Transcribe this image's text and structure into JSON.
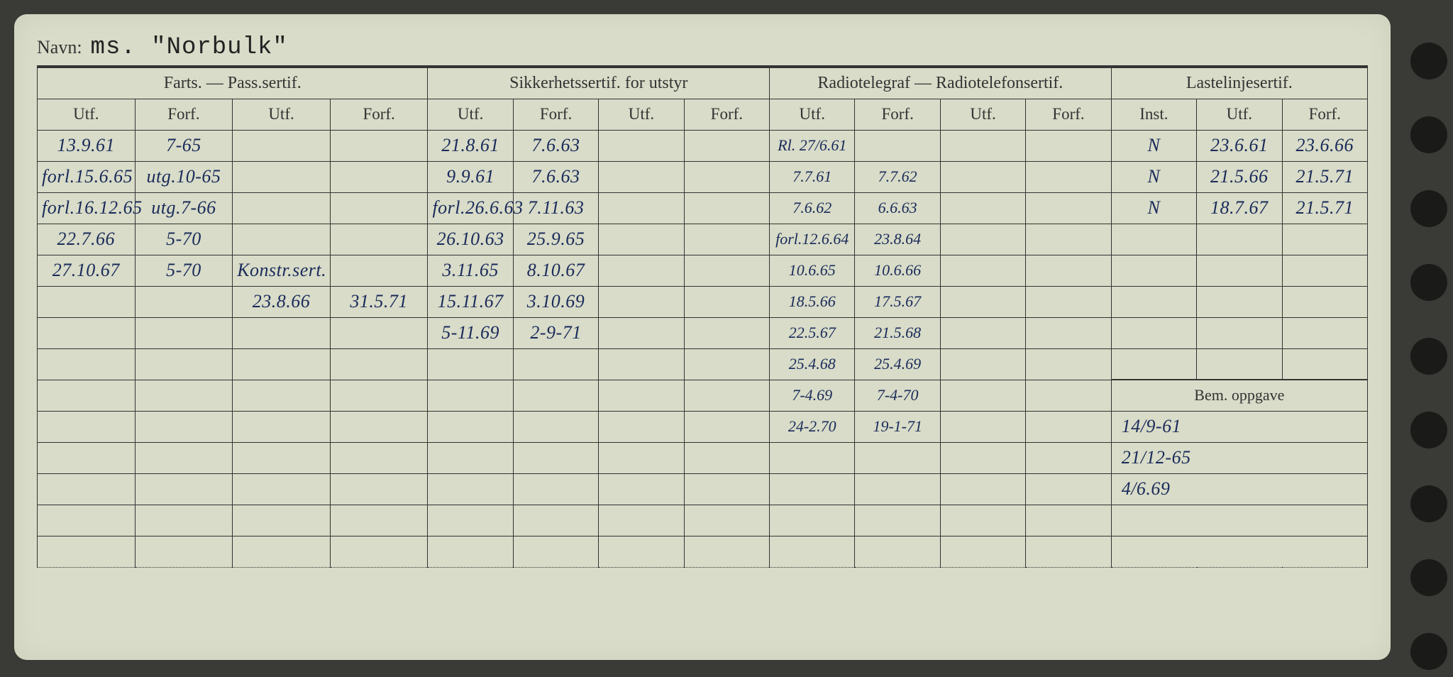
{
  "labels": {
    "navn": "Navn:",
    "farts": "Farts. — Pass.sertif.",
    "sikkerhet": "Sikkerhetssertif. for utstyr",
    "radio": "Radiotelegraf — Radiotelefonsertif.",
    "laste": "Lastelinjesertif.",
    "utf": "Utf.",
    "forf": "Forf.",
    "inst": "Inst.",
    "bem": "Bem. oppgave"
  },
  "title": "ms. \"Norbulk\"",
  "rows": [
    {
      "farts": [
        "13.9.61",
        "7-65",
        "",
        ""
      ],
      "sik": [
        "21.8.61",
        "7.6.63",
        "",
        ""
      ],
      "radio": [
        "Rl. 27/6.61",
        "",
        "",
        ""
      ],
      "laste": [
        "N",
        "23.6.61",
        "23.6.66"
      ]
    },
    {
      "farts": [
        "forl.15.6.65",
        "utg.10-65",
        "",
        ""
      ],
      "sik": [
        "9.9.61",
        "7.6.63",
        "",
        ""
      ],
      "radio": [
        "7.7.61",
        "7.7.62",
        "",
        ""
      ],
      "laste": [
        "N",
        "21.5.66",
        "21.5.71"
      ]
    },
    {
      "farts": [
        "forl.16.12.65",
        "utg.7-66",
        "",
        ""
      ],
      "sik": [
        "forl.26.6.63",
        "7.11.63",
        "",
        ""
      ],
      "radio": [
        "7.6.62",
        "6.6.63",
        "",
        ""
      ],
      "laste": [
        "N",
        "18.7.67",
        "21.5.71"
      ]
    },
    {
      "farts": [
        "22.7.66",
        "5-70",
        "",
        ""
      ],
      "sik": [
        "26.10.63",
        "25.9.65",
        "",
        ""
      ],
      "radio": [
        "forl.12.6.64",
        "23.8.64",
        "",
        ""
      ],
      "laste": [
        "",
        "",
        ""
      ]
    },
    {
      "farts": [
        "27.10.67",
        "5-70",
        "Konstr.sert.",
        ""
      ],
      "sik": [
        "3.11.65",
        "8.10.67",
        "",
        ""
      ],
      "radio": [
        "10.6.65",
        "10.6.66",
        "",
        ""
      ],
      "laste": [
        "",
        "",
        ""
      ]
    },
    {
      "farts": [
        "",
        "",
        "23.8.66",
        "31.5.71"
      ],
      "sik": [
        "15.11.67",
        "3.10.69",
        "",
        ""
      ],
      "radio": [
        "18.5.66",
        "17.5.67",
        "",
        ""
      ],
      "laste": [
        "",
        "",
        ""
      ]
    },
    {
      "farts": [
        "",
        "",
        "",
        ""
      ],
      "sik": [
        "5-11.69",
        "2-9-71",
        "",
        ""
      ],
      "radio": [
        "22.5.67",
        "21.5.68",
        "",
        ""
      ],
      "laste": [
        "",
        "",
        ""
      ]
    },
    {
      "farts": [
        "",
        "",
        "",
        ""
      ],
      "sik": [
        "",
        "",
        "",
        ""
      ],
      "radio": [
        "25.4.68",
        "25.4.69",
        "",
        ""
      ],
      "laste": [
        "",
        "",
        ""
      ]
    },
    {
      "farts": [
        "",
        "",
        "",
        ""
      ],
      "sik": [
        "",
        "",
        "",
        ""
      ],
      "radio": [
        "7-4.69",
        "7-4-70",
        "",
        ""
      ],
      "laste_bem_header": true
    },
    {
      "farts": [
        "",
        "",
        "",
        ""
      ],
      "sik": [
        "",
        "",
        "",
        ""
      ],
      "radio": [
        "24-2.70",
        "19-1-71",
        "",
        ""
      ],
      "bem": "14/9-61"
    },
    {
      "farts": [
        "",
        "",
        "",
        ""
      ],
      "sik": [
        "",
        "",
        "",
        ""
      ],
      "radio": [
        "",
        "",
        "",
        ""
      ],
      "bem": "21/12-65"
    },
    {
      "farts": [
        "",
        "",
        "",
        ""
      ],
      "sik": [
        "",
        "",
        "",
        ""
      ],
      "radio": [
        "",
        "",
        "",
        ""
      ],
      "bem": "4/6.69"
    },
    {
      "farts": [
        "",
        "",
        "",
        ""
      ],
      "sik": [
        "",
        "",
        "",
        ""
      ],
      "radio": [
        "",
        "",
        "",
        ""
      ],
      "bem": ""
    },
    {
      "farts": [
        "",
        "",
        "",
        ""
      ],
      "sik": [
        "",
        "",
        "",
        ""
      ],
      "radio": [
        "",
        "",
        "",
        ""
      ],
      "bem": ""
    }
  ],
  "colors": {
    "card_bg": "#d8dcc8",
    "page_bg": "#3a3a36",
    "ink": "#1a2a5a",
    "line": "#333333"
  }
}
